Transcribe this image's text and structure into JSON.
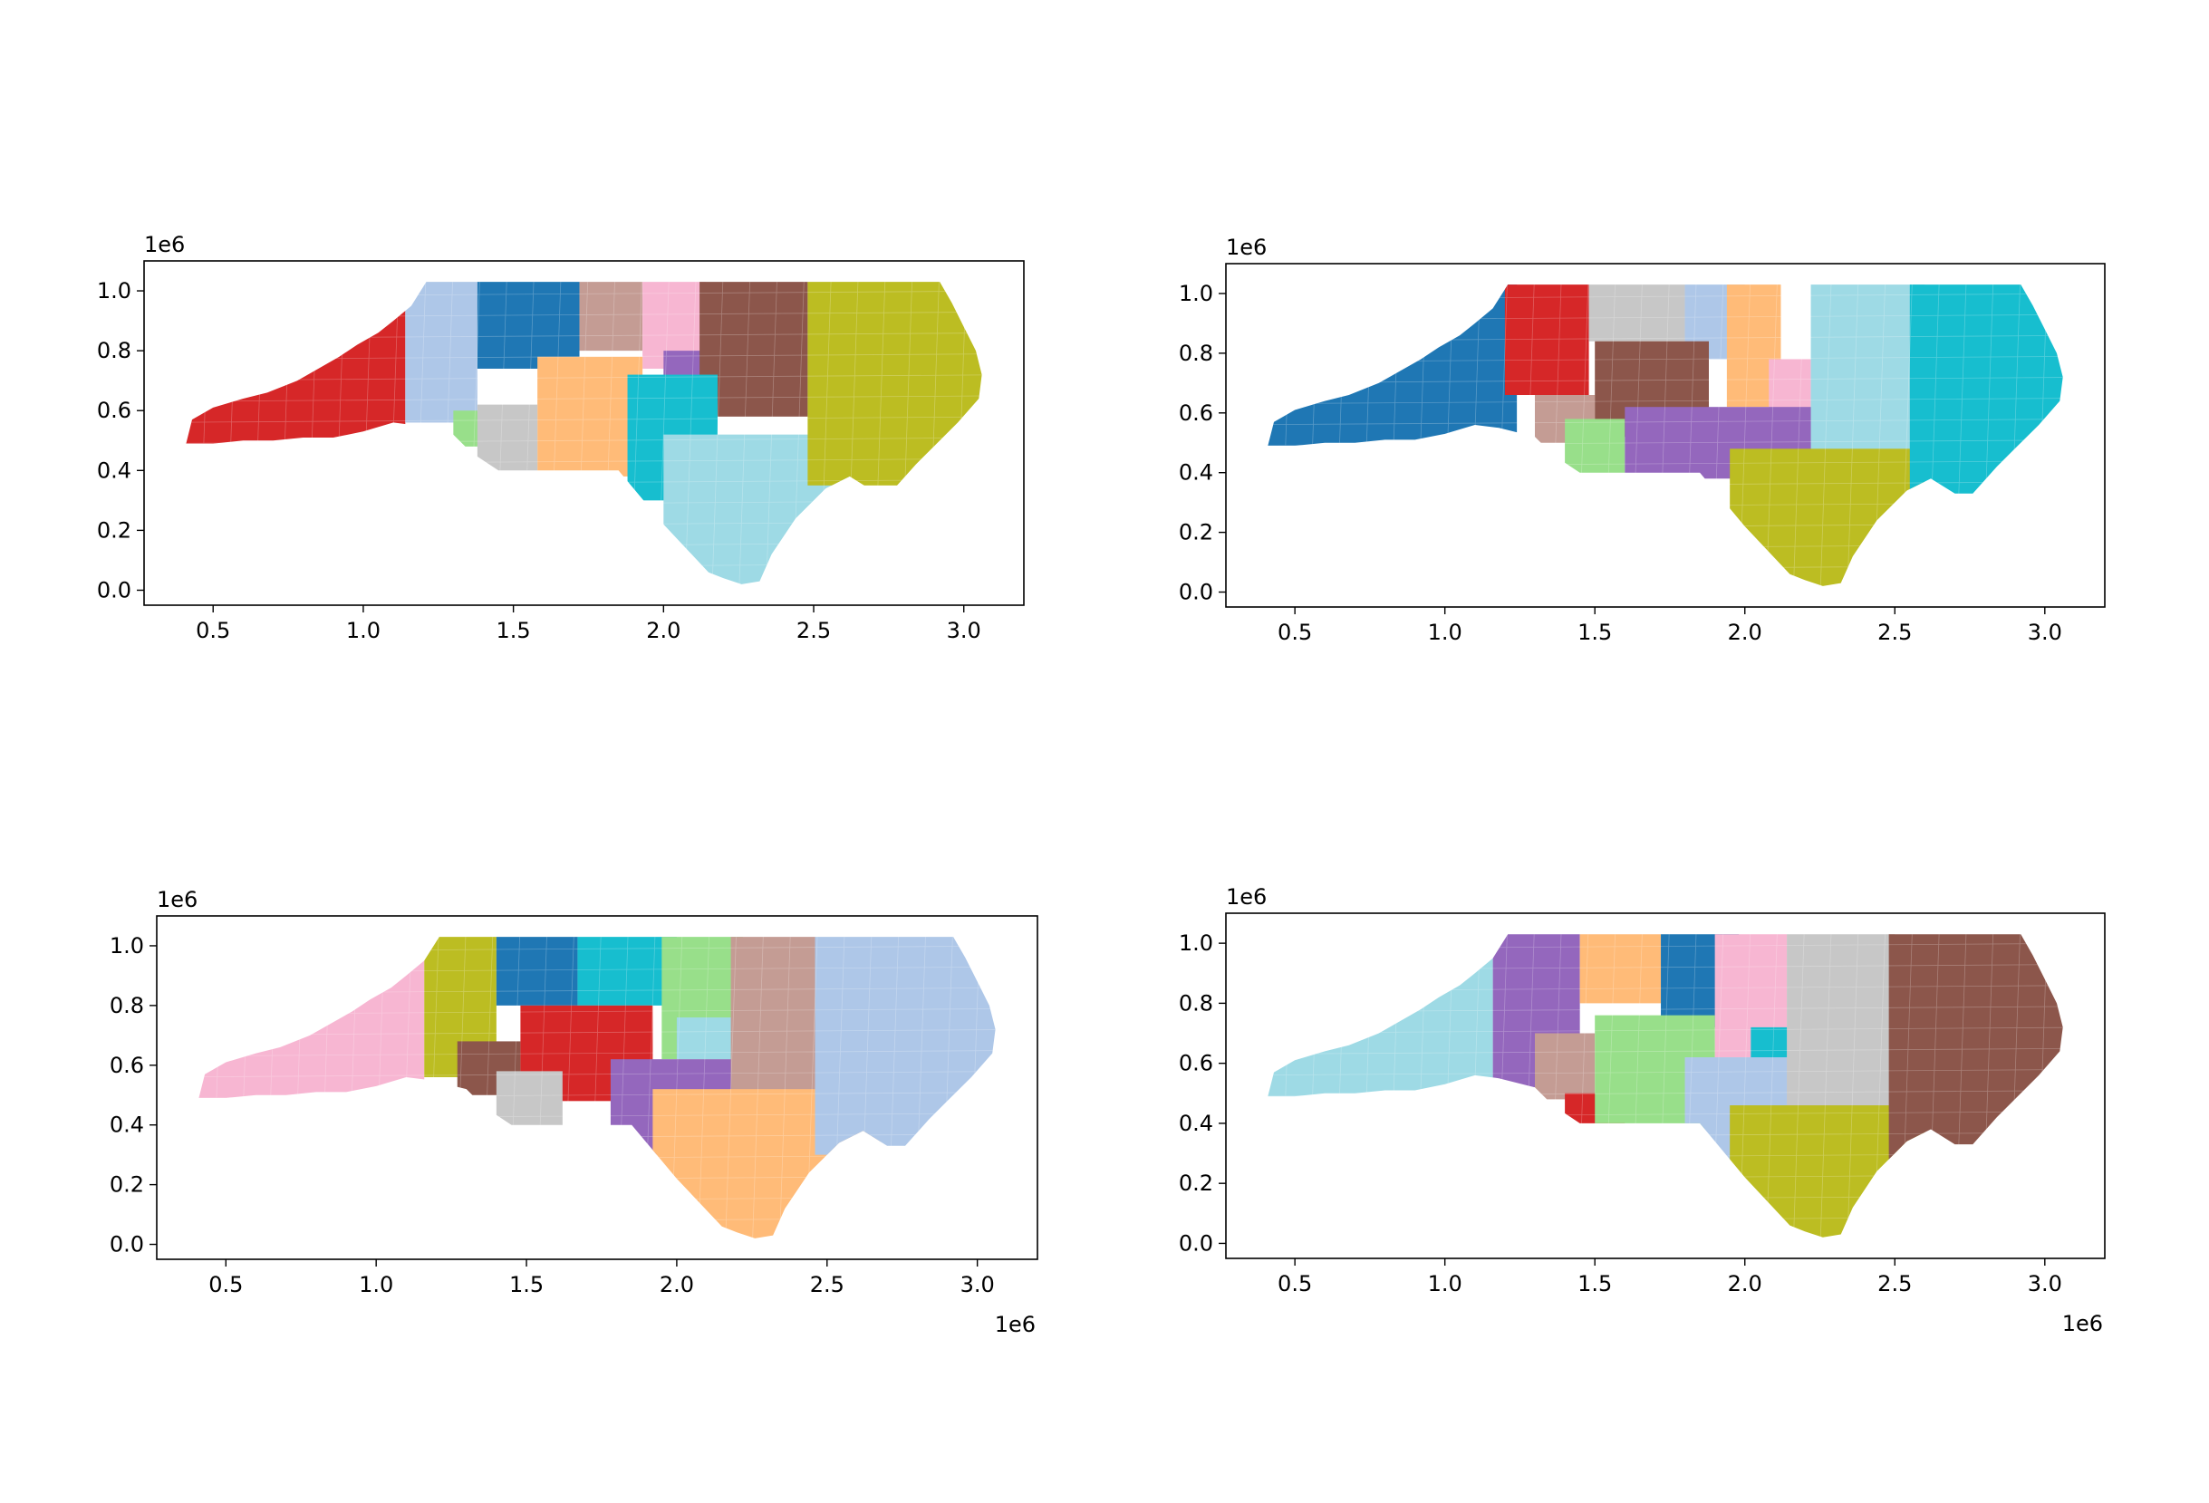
{
  "figure": {
    "background": "#ffffff",
    "district_colors": [
      "#1f77b4",
      "#aec7e8",
      "#ff7f0e",
      "#ffbb78",
      "#2ca02c",
      "#98df8a",
      "#d62728",
      "#ff9896",
      "#9467bd",
      "#c5b0d5",
      "#8c564b",
      "#c49c94",
      "#e377c2",
      "#f7b6d2",
      "#7f7f7f",
      "#c7c7c7",
      "#bcbd22",
      "#dbdb8d",
      "#17becf",
      "#9edae5"
    ],
    "panels": [
      {
        "id": "top-left",
        "districts": [
          {
            "color": "#d62728"
          },
          {
            "color": "#aec7e8"
          },
          {
            "color": "#1f77b4"
          },
          {
            "color": "#c49c94"
          },
          {
            "color": "#f7b6d2"
          },
          {
            "color": "#98df8a"
          },
          {
            "color": "#ffbb78"
          },
          {
            "color": "#c7c7c7"
          },
          {
            "color": "#9467bd"
          },
          {
            "color": "#8c564b"
          },
          {
            "color": "#17becf"
          },
          {
            "color": "#9edae5"
          },
          {
            "color": "#bcbd22"
          }
        ]
      },
      {
        "id": "top-right",
        "districts": [
          {
            "color": "#1f77b4"
          },
          {
            "color": "#d62728"
          },
          {
            "color": "#c7c7c7"
          },
          {
            "color": "#aec7e8"
          },
          {
            "color": "#ffbb78"
          },
          {
            "color": "#c49c94"
          },
          {
            "color": "#8c564b"
          },
          {
            "color": "#98df8a"
          },
          {
            "color": "#f7b6d2"
          },
          {
            "color": "#9467bd"
          },
          {
            "color": "#9edae5"
          },
          {
            "color": "#bcbd22"
          },
          {
            "color": "#17becf"
          }
        ]
      },
      {
        "id": "bottom-left",
        "districts": [
          {
            "color": "#f7b6d2"
          },
          {
            "color": "#bcbd22"
          },
          {
            "color": "#1f77b4"
          },
          {
            "color": "#17becf"
          },
          {
            "color": "#98df8a"
          },
          {
            "color": "#8c564b"
          },
          {
            "color": "#d62728"
          },
          {
            "color": "#c7c7c7"
          },
          {
            "color": "#9edae5"
          },
          {
            "color": "#9467bd"
          },
          {
            "color": "#c49c94"
          },
          {
            "color": "#ffbb78"
          },
          {
            "color": "#aec7e8"
          }
        ]
      },
      {
        "id": "bottom-right",
        "districts": [
          {
            "color": "#9edae5"
          },
          {
            "color": "#9467bd"
          },
          {
            "color": "#ffbb78"
          },
          {
            "color": "#1f77b4"
          },
          {
            "color": "#f7b6d2"
          },
          {
            "color": "#c49c94"
          },
          {
            "color": "#d62728"
          },
          {
            "color": "#98df8a"
          },
          {
            "color": "#17becf"
          },
          {
            "color": "#aec7e8"
          },
          {
            "color": "#c7c7c7"
          },
          {
            "color": "#bcbd22"
          },
          {
            "color": "#8c564b"
          }
        ]
      }
    ],
    "axes": {
      "xticks": [
        "0.5",
        "1.0",
        "1.5",
        "2.0",
        "2.5",
        "3.0"
      ],
      "yticks": [
        "0.0",
        "0.2",
        "0.4",
        "0.6",
        "0.8",
        "1.0"
      ],
      "offset_label": "1e6"
    }
  },
  "chart_data": [
    {
      "type": "map",
      "panel": "top-left",
      "x_ticks": [
        0.5,
        1.0,
        1.5,
        2.0,
        2.5,
        3.0
      ],
      "y_ticks": [
        0.0,
        0.2,
        0.4,
        0.6,
        0.8,
        1.0
      ],
      "x_scale": "1e6",
      "y_scale": "1e6",
      "xlim": [
        0.27,
        3.2
      ],
      "ylim": [
        -0.05,
        1.1
      ],
      "district_count": 13
    },
    {
      "type": "map",
      "panel": "top-right",
      "x_ticks": [
        0.5,
        1.0,
        1.5,
        2.0,
        2.5,
        3.0
      ],
      "y_ticks": [
        0.0,
        0.2,
        0.4,
        0.6,
        0.8,
        1.0
      ],
      "x_scale": "1e6",
      "y_scale": "1e6",
      "xlim": [
        0.27,
        3.2
      ],
      "ylim": [
        -0.05,
        1.1
      ],
      "district_count": 13
    },
    {
      "type": "map",
      "panel": "bottom-left",
      "x_ticks": [
        0.5,
        1.0,
        1.5,
        2.0,
        2.5,
        3.0
      ],
      "y_ticks": [
        0.0,
        0.2,
        0.4,
        0.6,
        0.8,
        1.0
      ],
      "x_scale": "1e6",
      "y_scale": "1e6",
      "xlim": [
        0.27,
        3.2
      ],
      "ylim": [
        -0.05,
        1.1
      ],
      "district_count": 13
    },
    {
      "type": "map",
      "panel": "bottom-right",
      "x_ticks": [
        0.5,
        1.0,
        1.5,
        2.0,
        2.5,
        3.0
      ],
      "y_ticks": [
        0.0,
        0.2,
        0.4,
        0.6,
        0.8,
        1.0
      ],
      "x_scale": "1e6",
      "y_scale": "1e6",
      "xlim": [
        0.27,
        3.2
      ],
      "ylim": [
        -0.05,
        1.1
      ],
      "district_count": 13
    }
  ]
}
